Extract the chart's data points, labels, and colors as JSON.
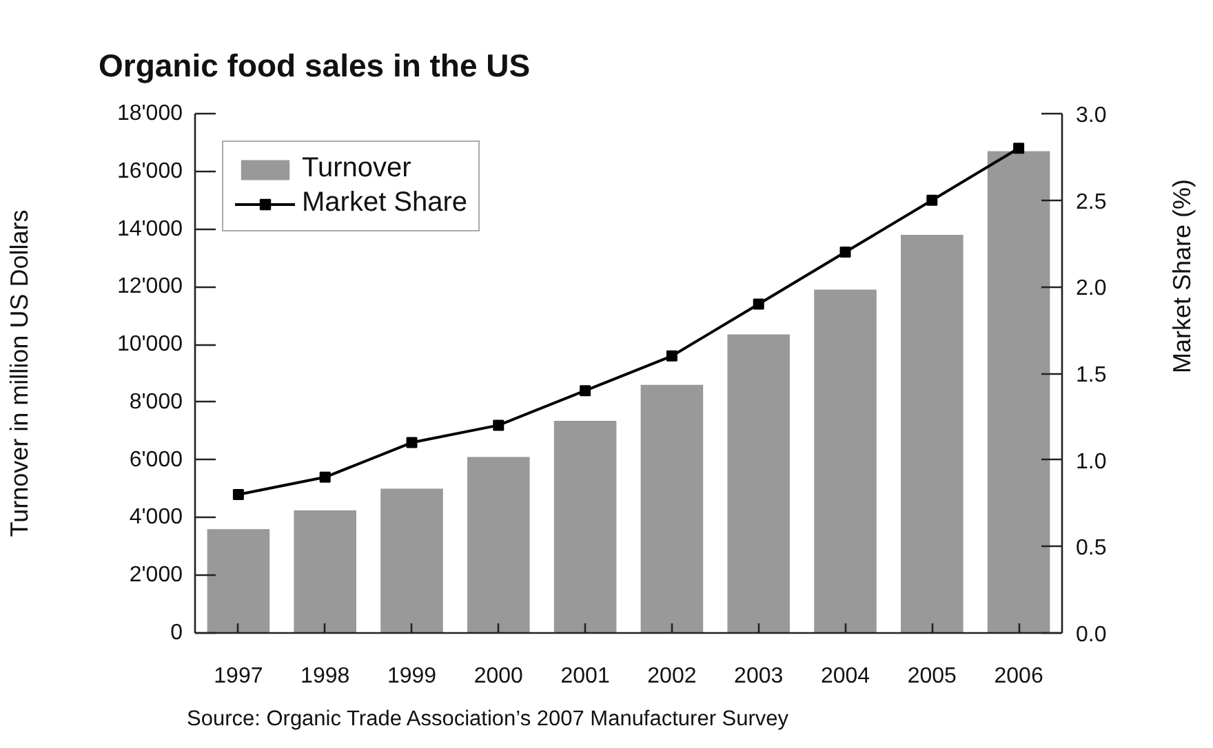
{
  "chart_data": {
    "type": "bar",
    "title": "Organic food sales in the US",
    "ylabel": "Turnover in million US Dollars",
    "y2label": "Market Share (%)",
    "categories": [
      "1997",
      "1998",
      "1999",
      "2000",
      "2001",
      "2002",
      "2003",
      "2004",
      "2005",
      "2006"
    ],
    "series": [
      {
        "name": "Turnover",
        "color": "#999999",
        "values": [
          3600,
          4250,
          5000,
          6100,
          7350,
          8600,
          10350,
          11900,
          13800,
          16700
        ]
      },
      {
        "name": "Market Share",
        "type": "line",
        "axis": "y2",
        "color": "#000000",
        "values": [
          0.8,
          0.9,
          1.1,
          1.2,
          1.4,
          1.6,
          1.9,
          2.2,
          2.5,
          2.8
        ]
      }
    ],
    "ylim": [
      0,
      18000
    ],
    "yticks": [
      0,
      {
        "value": 2000,
        "label": "2'000"
      },
      {
        "value": 4000,
        "label": "4'000"
      },
      {
        "value": 6000,
        "label": "6'000"
      },
      {
        "value": 8000,
        "label": "8'000"
      },
      {
        "value": 10000,
        "label": "10'000"
      },
      {
        "value": 12000,
        "label": "12'000"
      },
      {
        "value": 14000,
        "label": "14'000"
      },
      {
        "value": 16000,
        "label": "16'000"
      },
      {
        "value": 18000,
        "label": "18'000"
      }
    ],
    "y2lim": [
      0,
      3
    ],
    "y2ticks": [
      {
        "value": 0,
        "label": "0.0"
      },
      0.5,
      {
        "value": 1,
        "label": "1.0"
      },
      1.5,
      {
        "value": 2,
        "label": "2.0"
      },
      2.5,
      {
        "value": 3,
        "label": "3.0"
      }
    ],
    "grid": false,
    "legend": "top left",
    "marker": "square",
    "line_style": "solid",
    "annotations": [
      "Source: Organic Trade Association’s 2007 Manufacturer Survey"
    ]
  }
}
